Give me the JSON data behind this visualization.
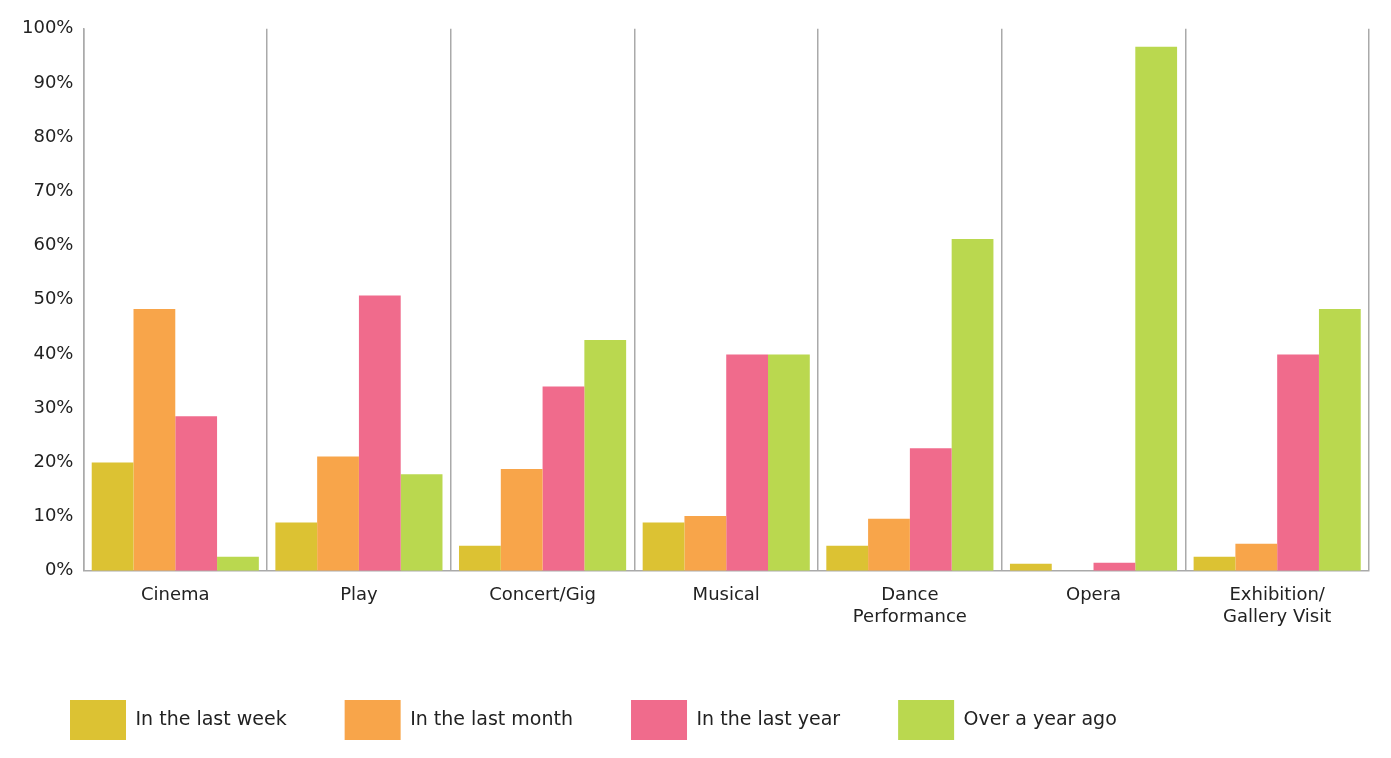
{
  "chart_data": {
    "type": "bar",
    "categories": [
      "Cinema",
      "Play",
      "Concert/Gig",
      "Musical",
      "Dance Performance",
      "Opera",
      "Exhibition/ Gallery Visit"
    ],
    "series": [
      {
        "name": "In the last week",
        "color": "#dcc233",
        "values": [
          20.0,
          8.9,
          4.6,
          8.9,
          4.6,
          1.3,
          2.6
        ]
      },
      {
        "name": "In the last month",
        "color": "#f8a54a",
        "values": [
          48.3,
          21.1,
          18.8,
          10.1,
          9.6,
          0,
          5.0
        ]
      },
      {
        "name": "In the last year",
        "color": "#f06b8c",
        "values": [
          28.5,
          50.8,
          34.0,
          39.9,
          22.6,
          1.5,
          39.9
        ]
      },
      {
        "name": "Over a year ago",
        "color": "#bad84f",
        "values": [
          2.6,
          17.8,
          42.6,
          39.9,
          61.2,
          96.7,
          48.3
        ]
      }
    ],
    "ylim": [
      0,
      100
    ],
    "yticks": [
      {
        "value": 0,
        "label": "0%"
      },
      {
        "value": 10,
        "label": "10%"
      },
      {
        "value": 20,
        "label": "20%"
      },
      {
        "value": 30,
        "label": "30%"
      },
      {
        "value": 40,
        "label": "40%"
      },
      {
        "value": 50,
        "label": "50%"
      },
      {
        "value": 60,
        "label": "60%"
      },
      {
        "value": 70,
        "label": "70%"
      },
      {
        "value": 80,
        "label": "80%"
      },
      {
        "value": 90,
        "label": "90%"
      },
      {
        "value": 100,
        "label": "100%"
      }
    ],
    "grid": "x",
    "legend": "bottom"
  }
}
